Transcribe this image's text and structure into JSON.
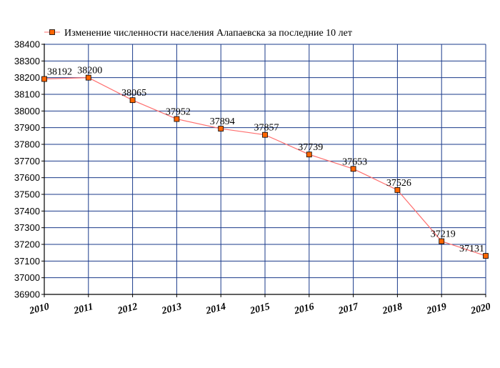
{
  "chart_data": {
    "type": "line",
    "title": "",
    "xlabel": "",
    "ylabel": "",
    "ylim": [
      36900,
      38400
    ],
    "ytick_step": 100,
    "grid": true,
    "legend_placement": "top",
    "x": [
      "2010",
      "2011",
      "2012",
      "2013",
      "2014",
      "2015",
      "2016",
      "2017",
      "2018",
      "2019",
      "2020"
    ],
    "series": [
      {
        "name": "Изменение численности населения Алапаевска за последние 10 лет",
        "values": [
          38192,
          38200,
          38065,
          37952,
          37894,
          37857,
          37739,
          37653,
          37526,
          37219,
          37131
        ]
      }
    ],
    "colors": {
      "line": "#ff6f6f",
      "marker_fill": "#ff6600",
      "marker_stroke": "#000000",
      "grid": "#1a3a8a",
      "axis": "#000000"
    }
  }
}
